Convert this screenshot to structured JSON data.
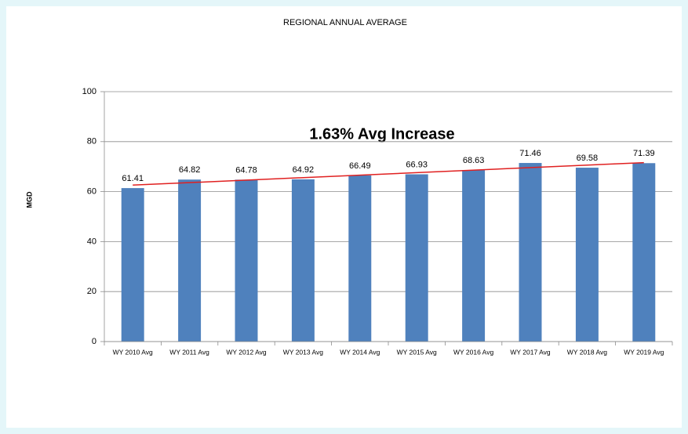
{
  "chart_data": {
    "type": "bar",
    "title": "REGIONAL ANNUAL AVERAGE",
    "annotation": "1.63% Avg Increase",
    "ylabel": "MGD",
    "categories": [
      "WY 2010 Avg",
      "WY 2011 Avg",
      "WY 2012 Avg",
      "WY 2013 Avg",
      "WY 2014 Avg",
      "WY 2015 Avg",
      "WY 2016 Avg",
      "WY 2017 Avg",
      "WY 2018 Avg",
      "WY 2019 Avg"
    ],
    "values": [
      61.41,
      64.82,
      64.78,
      64.92,
      66.49,
      66.93,
      68.63,
      71.46,
      69.58,
      71.39
    ],
    "color": "#4f81bd",
    "trend": {
      "color": "#e02020",
      "values": [
        62.6,
        71.6
      ]
    },
    "ylim": [
      0,
      100
    ],
    "yticks": [
      0,
      20,
      40,
      60,
      80,
      100
    ],
    "grid": true
  }
}
